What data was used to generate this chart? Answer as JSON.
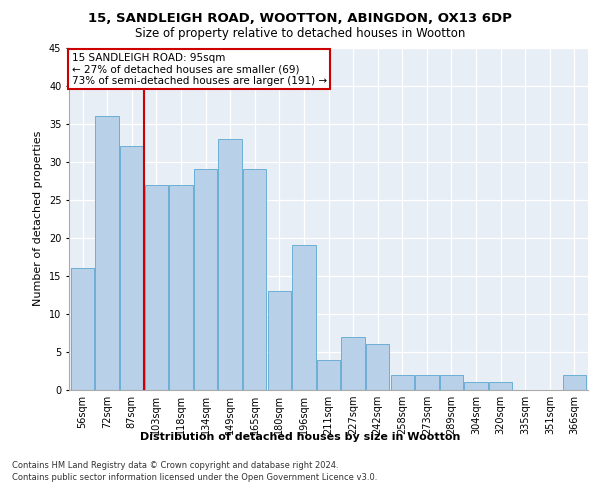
{
  "title1": "15, SANDLEIGH ROAD, WOOTTON, ABINGDON, OX13 6DP",
  "title2": "Size of property relative to detached houses in Wootton",
  "xlabel": "Distribution of detached houses by size in Wootton",
  "ylabel": "Number of detached properties",
  "categories": [
    "56sqm",
    "72sqm",
    "87sqm",
    "103sqm",
    "118sqm",
    "134sqm",
    "149sqm",
    "165sqm",
    "180sqm",
    "196sqm",
    "211sqm",
    "227sqm",
    "242sqm",
    "258sqm",
    "273sqm",
    "289sqm",
    "304sqm",
    "320sqm",
    "335sqm",
    "351sqm",
    "366sqm"
  ],
  "values": [
    16,
    36,
    32,
    27,
    27,
    29,
    33,
    29,
    13,
    19,
    4,
    7,
    6,
    2,
    2,
    2,
    1,
    1,
    0,
    0,
    2
  ],
  "bar_color": "#b8d0e8",
  "bar_edge_color": "#6baed6",
  "annotation_title": "15 SANDLEIGH ROAD: 95sqm",
  "annotation_line1": "← 27% of detached houses are smaller (69)",
  "annotation_line2": "73% of semi-detached houses are larger (191) →",
  "annotation_box_color": "#ffffff",
  "annotation_box_edge": "#cc0000",
  "vline_color": "#cc0000",
  "vline_x": 2.5,
  "footer1": "Contains HM Land Registry data © Crown copyright and database right 2024.",
  "footer2": "Contains public sector information licensed under the Open Government Licence v3.0.",
  "background_color": "#e8eef5",
  "ylim": [
    0,
    45
  ],
  "yticks": [
    0,
    5,
    10,
    15,
    20,
    25,
    30,
    35,
    40,
    45
  ],
  "title1_fontsize": 9.5,
  "title2_fontsize": 8.5,
  "xlabel_fontsize": 8,
  "ylabel_fontsize": 8,
  "tick_fontsize": 7,
  "annotation_fontsize": 7.5,
  "footer_fontsize": 6
}
